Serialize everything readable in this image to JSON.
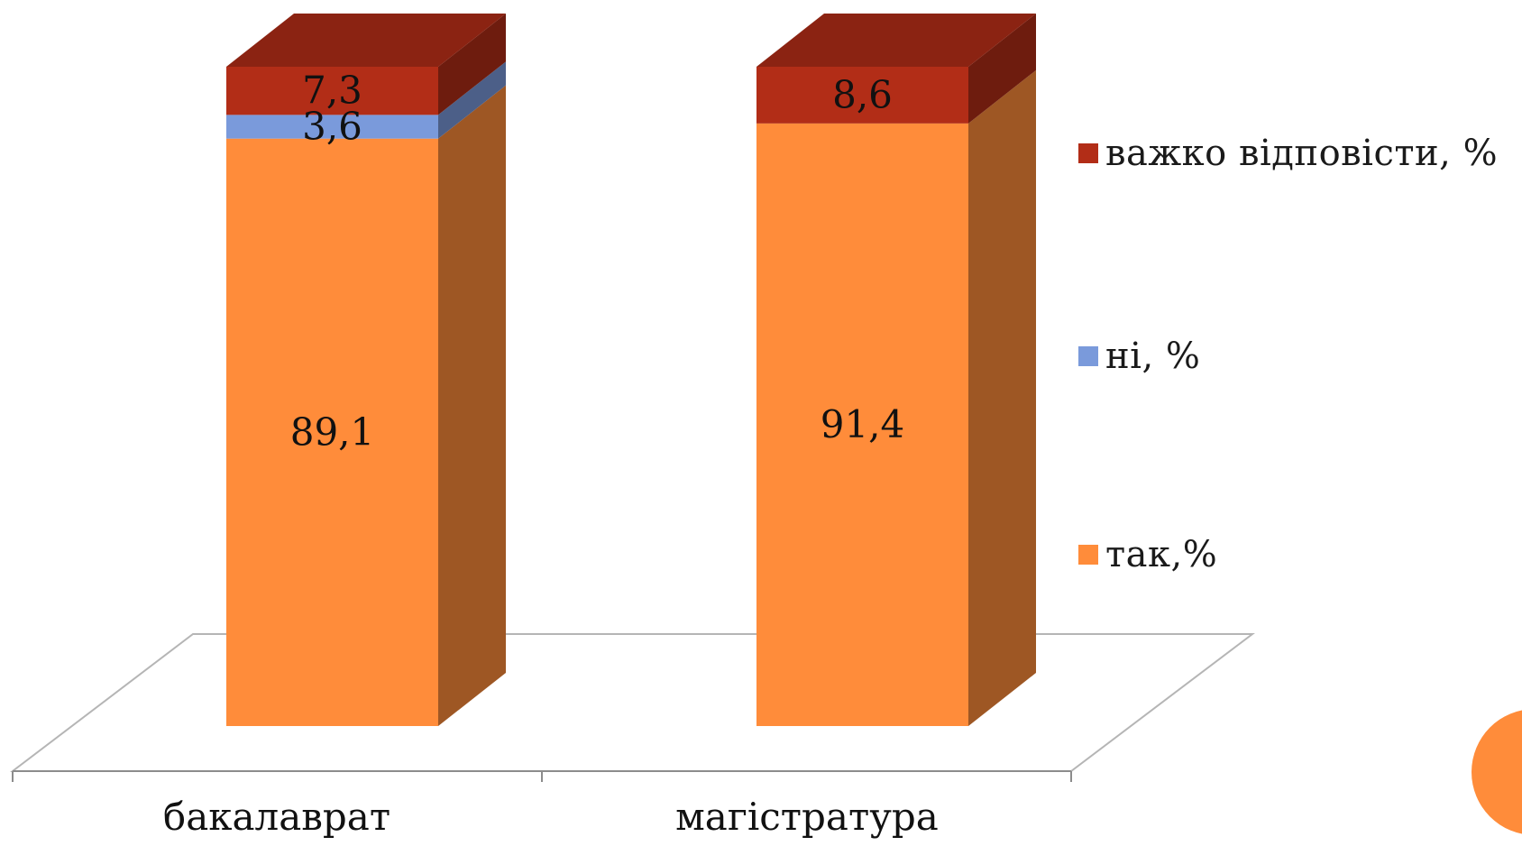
{
  "chart_data": {
    "type": "bar",
    "stacked": true,
    "three_d": true,
    "categories": [
      "бакалаврат",
      "магістратура"
    ],
    "series": [
      {
        "name": "так,%",
        "values": [
          89.1,
          91.4
        ],
        "labels": [
          "89,1",
          "91,4"
        ],
        "color": "#FF8C3A"
      },
      {
        "name": "ні, %",
        "values": [
          3.6,
          0
        ],
        "labels": [
          "3,6",
          ""
        ],
        "color": "#7A9ADB"
      },
      {
        "name": "важко відповісти, %",
        "values": [
          7.3,
          8.6
        ],
        "labels": [
          "7,3",
          "8,6"
        ],
        "color": "#B22D17"
      }
    ],
    "ylim": [
      0,
      100
    ],
    "legend_position": "right",
    "grid": false
  },
  "colors": {
    "floor_line": "#b5b5b5",
    "axis": "#8c8c8c",
    "accent_circle": "#FF8C3A"
  },
  "legend_order": [
    2,
    1,
    0
  ]
}
